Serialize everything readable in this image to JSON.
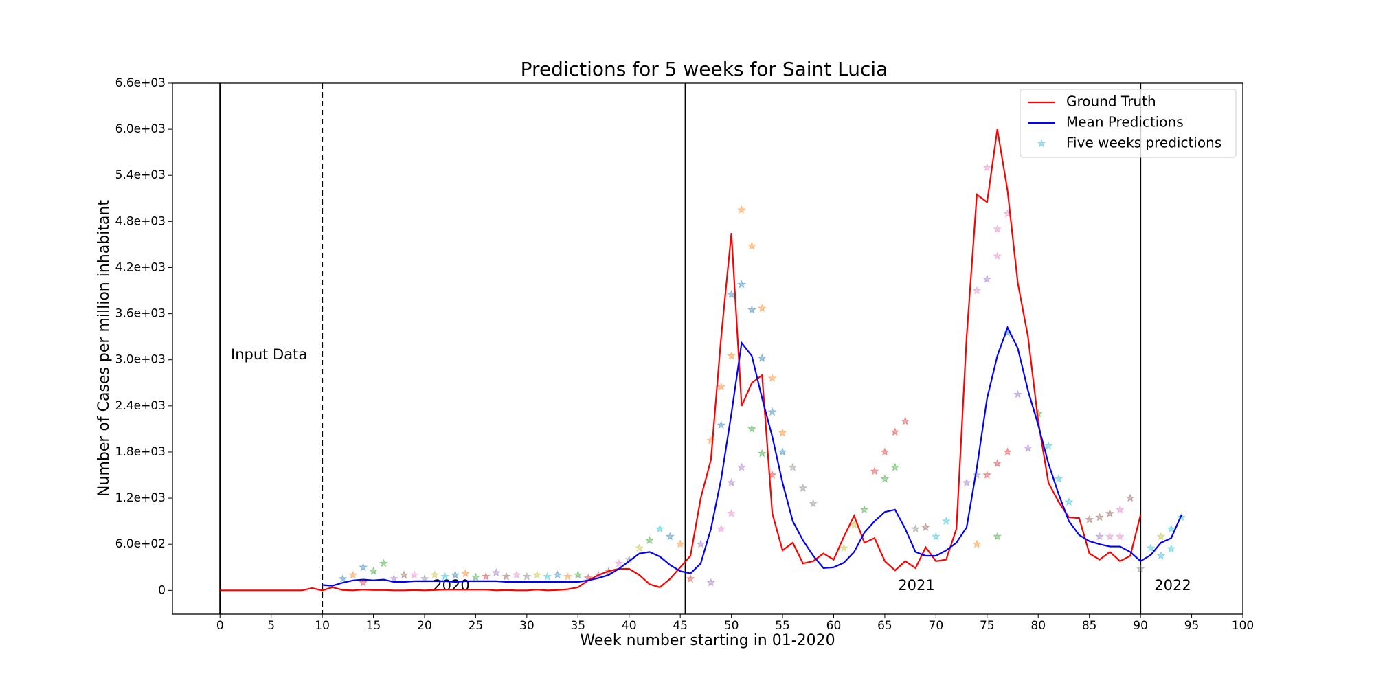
{
  "chart_data": {
    "type": "line",
    "title": "Predictions for 5 weeks for Saint Lucia",
    "x_label": "Week number starting in 01-2020",
    "y_label": "Number of Cases per million inhabitant",
    "xlim": [
      -4.65,
      100
    ],
    "ylim": [
      -310,
      6600
    ],
    "xticks": [
      0,
      5,
      10,
      15,
      20,
      25,
      30,
      35,
      40,
      45,
      50,
      55,
      60,
      65,
      70,
      75,
      80,
      85,
      90,
      95,
      100
    ],
    "yticks": [
      0,
      {
        "value": 600,
        "label": "6.0e+02"
      },
      {
        "value": 1200,
        "label": "1.2e+03"
      },
      {
        "value": 1800,
        "label": "1.8e+03"
      },
      {
        "value": 2400,
        "label": "2.4e+03"
      },
      {
        "value": 3000,
        "label": "3.0e+03"
      },
      {
        "value": 3600,
        "label": "3.6e+03"
      },
      {
        "value": 4200,
        "label": "4.2e+03"
      },
      {
        "value": 4800,
        "label": "4.8e+03"
      },
      {
        "value": 5400,
        "label": "5.4e+03"
      },
      {
        "value": 6000,
        "label": "6.0e+03"
      },
      {
        "value": 6600,
        "label": "6.6e+03"
      }
    ],
    "legend": "upper right",
    "vlines": [
      {
        "x": 0,
        "style": "solid"
      },
      {
        "x": 10,
        "style": "dashed"
      },
      {
        "x": 45.5,
        "style": "solid"
      },
      {
        "x": 90,
        "style": "solid"
      }
    ],
    "annotations": [
      "Input Data",
      "2020",
      "2021",
      "2022"
    ],
    "series": [
      {
        "name": "Ground Truth",
        "type": "line",
        "color": "#ff0000",
        "x": [
          0,
          1,
          2,
          3,
          4,
          5,
          6,
          7,
          8,
          9,
          10,
          11,
          12,
          13,
          14,
          15,
          16,
          17,
          18,
          19,
          20,
          21,
          22,
          23,
          24,
          25,
          26,
          27,
          28,
          29,
          30,
          31,
          32,
          33,
          34,
          35,
          36,
          37,
          38,
          39,
          40,
          41,
          42,
          43,
          44,
          45,
          46,
          47,
          48,
          49,
          50,
          51,
          52,
          53,
          54,
          55,
          56,
          57,
          58,
          59,
          60,
          61,
          62,
          63,
          64,
          65,
          66,
          67,
          68,
          69,
          70,
          71,
          72,
          73,
          74,
          75,
          76,
          77,
          78,
          79,
          80,
          81,
          82,
          83,
          84,
          85,
          86,
          87,
          88,
          89,
          90
        ],
        "values": [
          0,
          0,
          0,
          0,
          0,
          0,
          0,
          0,
          0,
          30,
          0,
          40,
          5,
          0,
          10,
          5,
          5,
          0,
          0,
          5,
          0,
          5,
          10,
          10,
          10,
          10,
          10,
          0,
          5,
          0,
          0,
          10,
          0,
          5,
          15,
          40,
          130,
          200,
          250,
          280,
          280,
          200,
          80,
          40,
          150,
          300,
          450,
          1200,
          1700,
          3300,
          4650,
          2400,
          2700,
          2800,
          1000,
          520,
          620,
          350,
          380,
          480,
          400,
          700,
          970,
          620,
          680,
          380,
          260,
          380,
          290,
          560,
          380,
          400,
          800,
          3300,
          5150,
          5050,
          6000,
          5200,
          4000,
          3300,
          2200,
          1400,
          1150,
          950,
          940,
          480,
          400,
          500,
          380,
          450,
          980
        ]
      },
      {
        "name": "Mean Predictions",
        "type": "line",
        "color": "#0000ff",
        "x": [
          10,
          11,
          12,
          13,
          14,
          15,
          16,
          17,
          18,
          19,
          20,
          21,
          22,
          23,
          24,
          25,
          26,
          27,
          28,
          29,
          30,
          31,
          32,
          33,
          34,
          35,
          36,
          37,
          38,
          39,
          40,
          41,
          42,
          43,
          44,
          45,
          46,
          47,
          48,
          49,
          50,
          51,
          52,
          53,
          54,
          55,
          56,
          57,
          58,
          59,
          60,
          61,
          62,
          63,
          64,
          65,
          66,
          67,
          68,
          69,
          70,
          71,
          72,
          73,
          74,
          75,
          76,
          77,
          78,
          79,
          80,
          81,
          82,
          83,
          84,
          85,
          86,
          87,
          88,
          89,
          90,
          91,
          92,
          93,
          94
        ],
        "values": [
          70,
          60,
          100,
          130,
          140,
          130,
          140,
          110,
          110,
          120,
          120,
          120,
          120,
          110,
          120,
          120,
          120,
          120,
          110,
          110,
          110,
          110,
          110,
          110,
          110,
          110,
          130,
          160,
          200,
          280,
          380,
          480,
          500,
          440,
          330,
          250,
          220,
          350,
          800,
          1450,
          2300,
          3220,
          3050,
          2500,
          2000,
          1400,
          900,
          650,
          450,
          290,
          300,
          360,
          500,
          750,
          900,
          1020,
          1050,
          800,
          500,
          450,
          450,
          520,
          620,
          820,
          1600,
          2500,
          3050,
          3420,
          3150,
          2600,
          2150,
          1650,
          1250,
          900,
          720,
          640,
          600,
          570,
          570,
          500,
          380,
          460,
          620,
          680,
          980
        ]
      },
      {
        "name": "Five weeks predictions",
        "type": "scatter",
        "color": "#17becf",
        "marker_alpha": 0.4,
        "x": [
          12,
          13,
          14,
          15,
          16,
          14,
          17,
          18,
          19,
          20,
          21,
          22,
          23,
          24,
          25,
          26,
          27,
          28,
          29,
          30,
          31,
          32,
          33,
          34,
          35,
          36,
          37,
          38,
          39,
          40,
          41,
          42,
          43,
          44,
          45,
          46,
          47,
          48,
          49,
          50,
          51,
          52,
          53,
          54,
          55,
          49,
          50,
          51,
          52,
          53,
          54,
          55,
          52,
          53,
          54,
          50,
          51,
          49,
          50,
          48,
          56,
          57,
          58,
          61,
          62,
          63,
          64,
          65,
          66,
          67,
          65,
          66,
          68,
          69,
          70,
          71,
          74,
          75,
          76,
          77,
          73,
          74,
          75,
          76,
          76,
          75,
          77,
          77,
          78,
          79,
          80,
          81,
          82,
          83,
          76,
          74,
          85,
          86,
          87,
          88,
          89,
          86,
          87,
          88,
          90,
          91,
          92,
          93,
          94,
          92,
          93
        ],
        "values": [
          150,
          200,
          300,
          250,
          350,
          100,
          150,
          200,
          200,
          150,
          200,
          180,
          200,
          220,
          170,
          180,
          230,
          180,
          200,
          180,
          200,
          180,
          200,
          180,
          200,
          160,
          200,
          250,
          350,
          400,
          550,
          650,
          800,
          700,
          600,
          150,
          600,
          1950,
          2650,
          3050,
          4950,
          4480,
          3670,
          2760,
          2050,
          2150,
          3850,
          3980,
          3650,
          3020,
          2320,
          1800,
          2100,
          1780,
          1500,
          1400,
          1600,
          800,
          1000,
          100,
          1600,
          1330,
          1130,
          550,
          850,
          1050,
          1550,
          1800,
          2060,
          2200,
          1450,
          1600,
          800,
          820,
          700,
          900,
          1500,
          1500,
          1650,
          1800,
          1400,
          3900,
          4050,
          4350,
          4700,
          5500,
          4900,
          3350,
          2550,
          1850,
          2300,
          1880,
          1450,
          1150,
          700,
          600,
          920,
          950,
          1000,
          1050,
          1200,
          700,
          700,
          700,
          280,
          550,
          700,
          800,
          950,
          450,
          540
        ],
        "colors": [
          "#1f77b4",
          "#ff7f0e",
          "#1f77b4",
          "#2ca02c",
          "#2ca02c",
          "#d62728",
          "#9467bd",
          "#8c564b",
          "#e377c2",
          "#7f7f7f",
          "#bcbd22",
          "#17becf",
          "#1f77b4",
          "#ff7f0e",
          "#2ca02c",
          "#d62728",
          "#9467bd",
          "#8c564b",
          "#e377c2",
          "#7f7f7f",
          "#bcbd22",
          "#17becf",
          "#1f77b4",
          "#ff7f0e",
          "#2ca02c",
          "#d62728",
          "#9467bd",
          "#8c564b",
          "#e377c2",
          "#7f7f7f",
          "#bcbd22",
          "#2ca02c",
          "#17becf",
          "#1f77b4",
          "#ff7f0e",
          "#d62728",
          "#9467bd",
          "#ff7f0e",
          "#ff7f0e",
          "#ff7f0e",
          "#ff7f0e",
          "#ff7f0e",
          "#ff7f0e",
          "#ff7f0e",
          "#ff7f0e",
          "#1f77b4",
          "#1f77b4",
          "#1f77b4",
          "#1f77b4",
          "#1f77b4",
          "#1f77b4",
          "#1f77b4",
          "#2ca02c",
          "#2ca02c",
          "#d62728",
          "#9467bd",
          "#9467bd",
          "#e377c2",
          "#e377c2",
          "#9467bd",
          "#7f7f7f",
          "#7f7f7f",
          "#7f7f7f",
          "#bcbd22",
          "#bcbd22",
          "#2ca02c",
          "#d62728",
          "#d62728",
          "#d62728",
          "#d62728",
          "#2ca02c",
          "#2ca02c",
          "#7f7f7f",
          "#8c564b",
          "#17becf",
          "#17becf",
          "#7f7f7f",
          "#d62728",
          "#d62728",
          "#d62728",
          "#9467bd",
          "#e377c2",
          "#9467bd",
          "#e377c2",
          "#e377c2",
          "#e377c2",
          "#e377c2",
          "#1f77b4",
          "#9467bd",
          "#9467bd",
          "#2ca02c",
          "#17becf",
          "#17becf",
          "#17becf",
          "#2ca02c",
          "#ff7f0e",
          "#8c564b",
          "#8c564b",
          "#8c564b",
          "#e377c2",
          "#8c564b",
          "#9467bd",
          "#e377c2",
          "#e377c2",
          "#7f7f7f",
          "#17becf",
          "#bcbd22",
          "#17becf",
          "#17becf",
          "#17becf",
          "#17becf"
        ]
      }
    ]
  }
}
